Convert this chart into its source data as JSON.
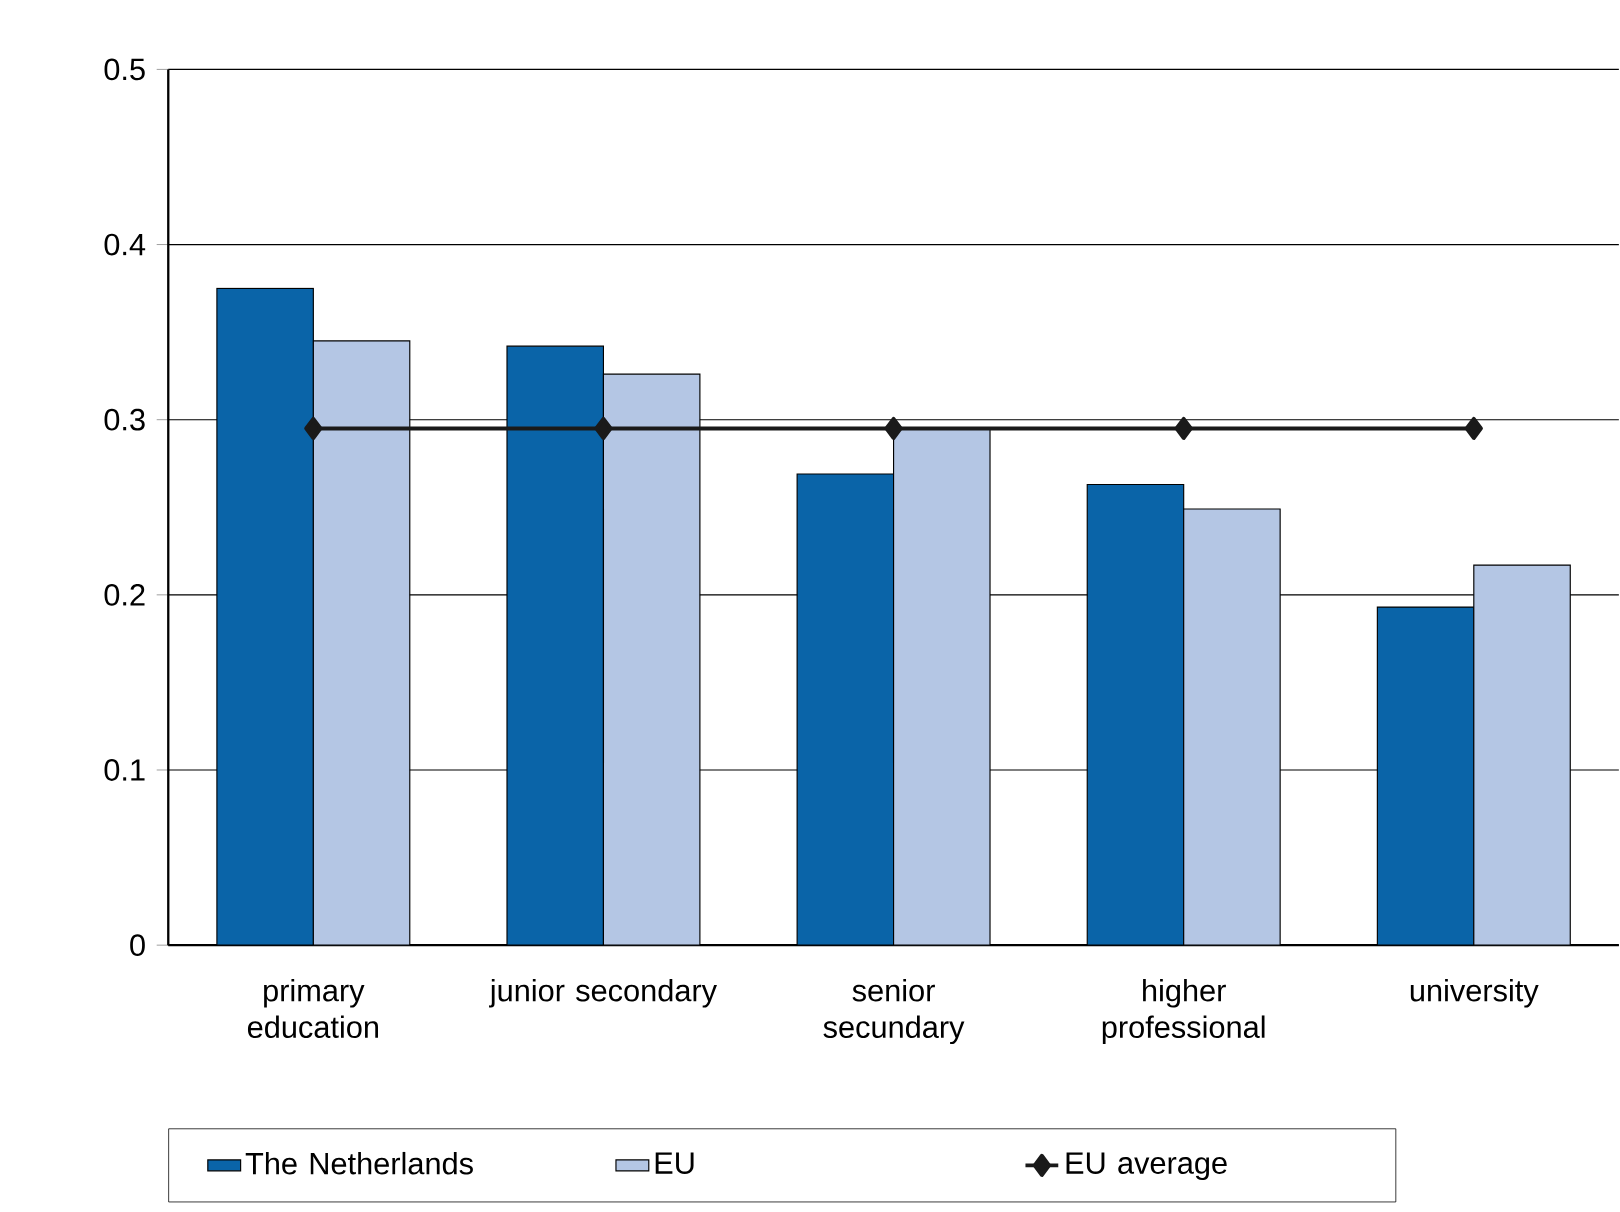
{
  "chart_data": {
    "type": "bar",
    "categories": [
      "primary education",
      "junior secondary",
      "senior secundary",
      "higher professional",
      "university"
    ],
    "series": [
      {
        "name": "The Netherlands",
        "color": "#0a64a8",
        "values": [
          0.375,
          0.342,
          0.269,
          0.263,
          0.193
        ]
      },
      {
        "name": "EU",
        "color": "#b4c6e4",
        "values": [
          0.345,
          0.326,
          0.295,
          0.249,
          0.217
        ]
      },
      {
        "name": "EU average",
        "type": "line",
        "color": "#1a1a1a",
        "marker": "diamond",
        "values": [
          0.295,
          0.295,
          0.295,
          0.295,
          0.295
        ]
      }
    ],
    "ylim": [
      0,
      0.5
    ],
    "yticks": [
      0,
      0.1,
      0.2,
      0.3,
      0.4,
      0.5
    ],
    "grid": "y",
    "legend": "bottom"
  }
}
